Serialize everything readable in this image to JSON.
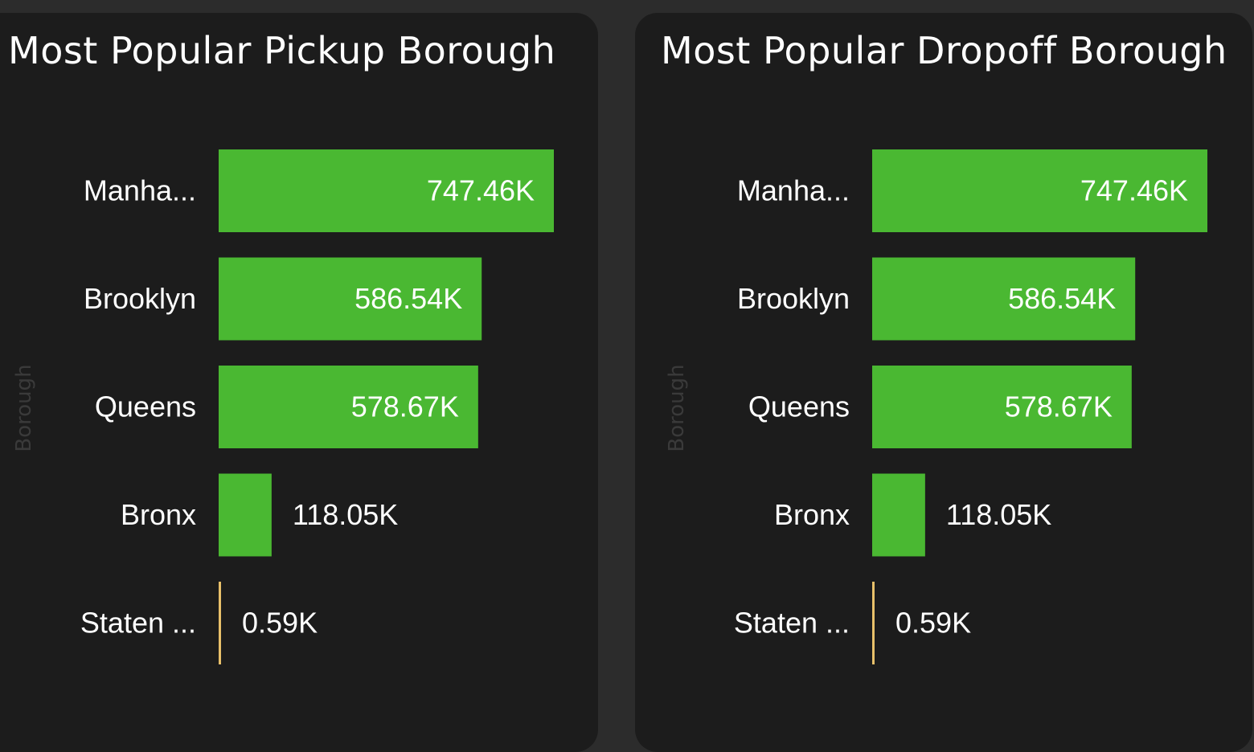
{
  "colors": {
    "background": "#2c2c2c",
    "card": "#1c1c1c",
    "bar": "#4ab832",
    "small_bar": "#e8c06a",
    "text": "#ffffff",
    "axis_title": "#3a3a3a"
  },
  "chart_data": [
    {
      "type": "bar",
      "orientation": "horizontal",
      "title": "Most Popular Pickup Borough",
      "ylabel": "Borough",
      "categories": [
        "Manha...",
        "Brooklyn",
        "Queens",
        "Bronx",
        "Staten ..."
      ],
      "values": [
        747.46,
        586.54,
        578.67,
        118.05,
        0.59
      ],
      "value_labels": [
        "747.46K",
        "586.54K",
        "578.67K",
        "118.05K",
        "0.59K"
      ],
      "unit": "K",
      "xlim": [
        0,
        747.46
      ],
      "grid": false,
      "legend": "none"
    },
    {
      "type": "bar",
      "orientation": "horizontal",
      "title": "Most Popular Dropoff Borough",
      "ylabel": "Borough",
      "categories": [
        "Manha...",
        "Brooklyn",
        "Queens",
        "Bronx",
        "Staten ..."
      ],
      "values": [
        747.46,
        586.54,
        578.67,
        118.05,
        0.59
      ],
      "value_labels": [
        "747.46K",
        "586.54K",
        "578.67K",
        "118.05K",
        "0.59K"
      ],
      "unit": "K",
      "xlim": [
        0,
        747.46
      ],
      "grid": false,
      "legend": "none"
    }
  ]
}
